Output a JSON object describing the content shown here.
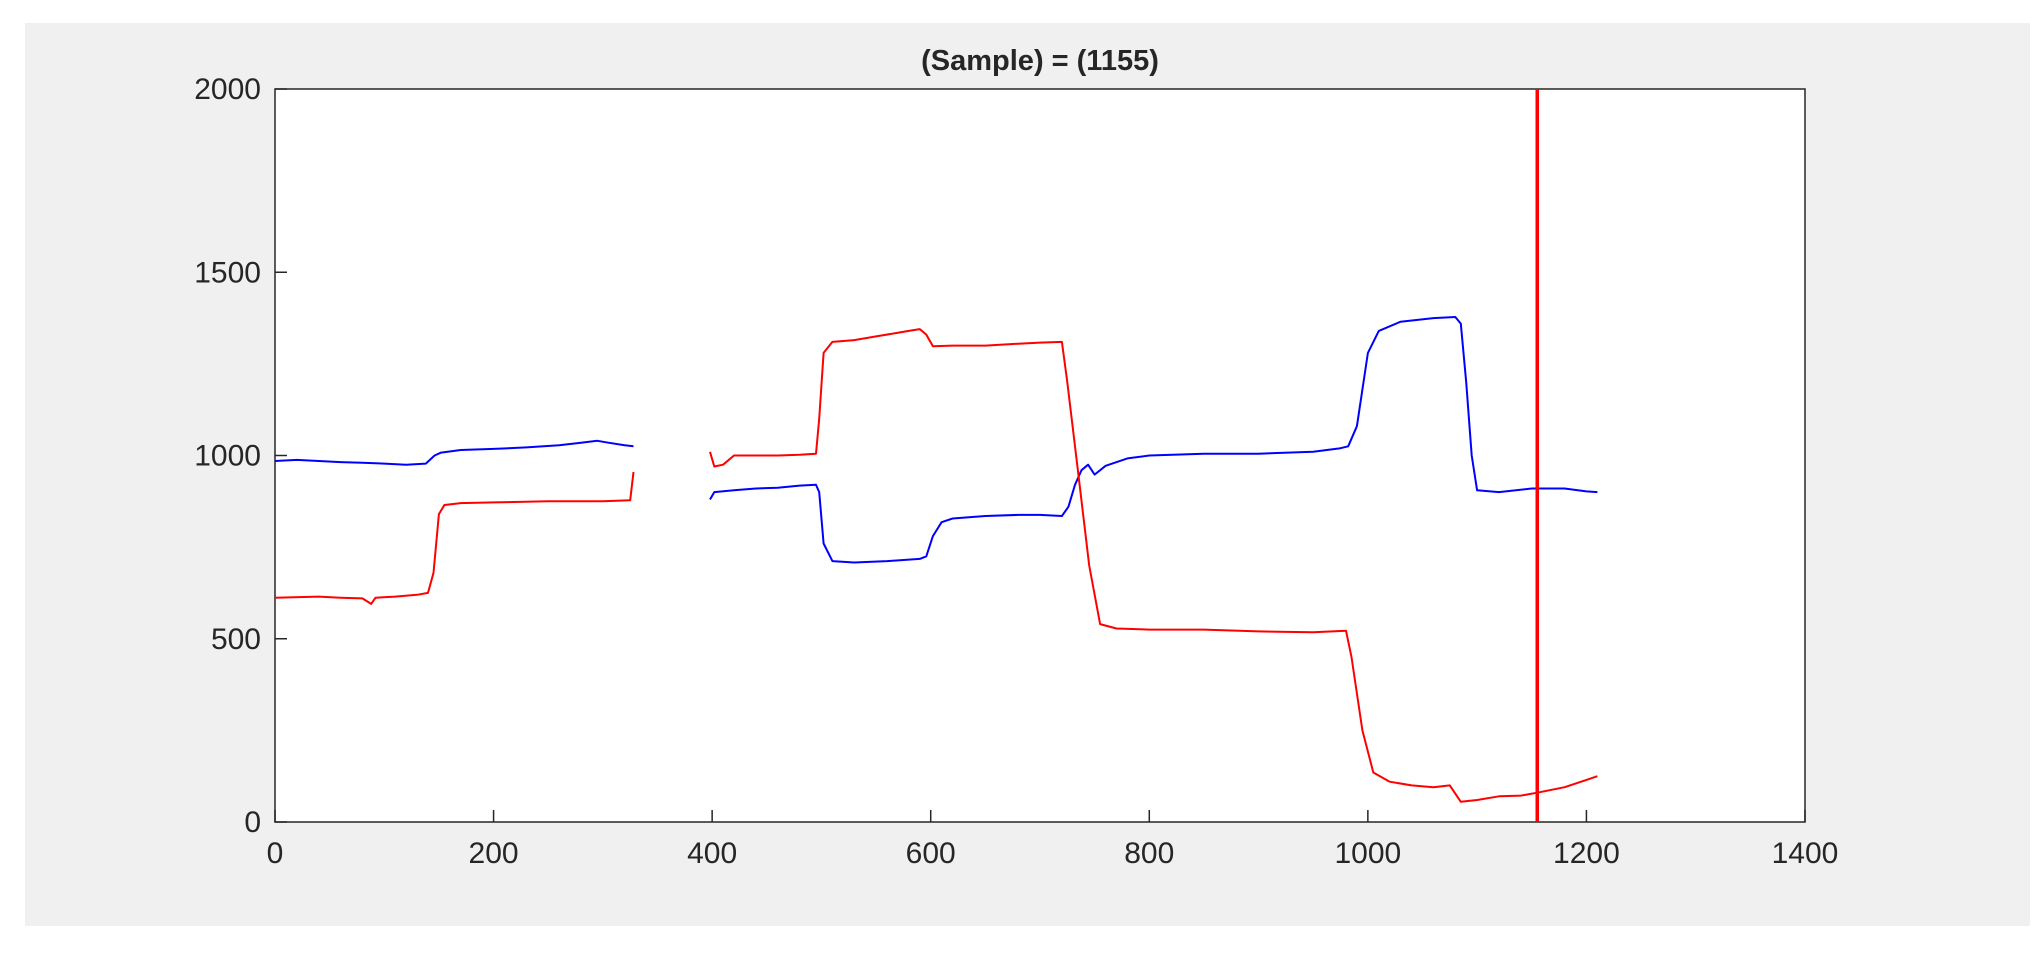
{
  "chart_data": {
    "type": "line",
    "title": "(Sample) = (1155)",
    "xlabel": "",
    "ylabel": "",
    "xlim": [
      0,
      1400
    ],
    "ylim": [
      0,
      2000
    ],
    "xticks": [
      0,
      200,
      400,
      600,
      800,
      1000,
      1200,
      1400
    ],
    "yticks": [
      0,
      500,
      1000,
      1500,
      2000
    ],
    "xtick_labels": [
      "0",
      "200",
      "400",
      "600",
      "800",
      "1000",
      "1200",
      "1400"
    ],
    "ytick_labels": [
      "0",
      "500",
      "1000",
      "1500",
      "2000"
    ],
    "grid": false,
    "cursor": {
      "x": 1155,
      "color": "#ff0000"
    },
    "series": [
      {
        "color": "#0000ff",
        "segments": [
          [
            [
              0,
              985
            ],
            [
              20,
              988
            ],
            [
              40,
              985
            ],
            [
              60,
              982
            ],
            [
              80,
              980
            ],
            [
              100,
              978
            ],
            [
              120,
              975
            ],
            [
              138,
              978
            ],
            [
              146,
              1000
            ],
            [
              152,
              1008
            ],
            [
              170,
              1015
            ],
            [
              200,
              1018
            ],
            [
              230,
              1022
            ],
            [
              260,
              1028
            ],
            [
              280,
              1035
            ],
            [
              295,
              1040
            ],
            [
              305,
              1035
            ],
            [
              320,
              1028
            ],
            [
              328,
              1025
            ]
          ],
          [
            [
              398,
              880
            ],
            [
              402,
              900
            ],
            [
              420,
              905
            ],
            [
              440,
              910
            ],
            [
              460,
              912
            ],
            [
              480,
              918
            ],
            [
              495,
              920
            ],
            [
              498,
              900
            ],
            [
              502,
              760
            ],
            [
              510,
              712
            ],
            [
              530,
              708
            ],
            [
              560,
              712
            ],
            [
              590,
              718
            ],
            [
              596,
              725
            ],
            [
              602,
              780
            ],
            [
              610,
              818
            ],
            [
              620,
              828
            ],
            [
              650,
              835
            ],
            [
              680,
              838
            ],
            [
              700,
              838
            ],
            [
              720,
              835
            ],
            [
              726,
              860
            ],
            [
              732,
              920
            ],
            [
              738,
              960
            ],
            [
              744,
              975
            ],
            [
              750,
              948
            ],
            [
              760,
              972
            ],
            [
              780,
              992
            ],
            [
              800,
              1000
            ],
            [
              850,
              1005
            ],
            [
              900,
              1005
            ],
            [
              950,
              1010
            ],
            [
              975,
              1020
            ],
            [
              982,
              1025
            ],
            [
              990,
              1080
            ],
            [
              1000,
              1280
            ],
            [
              1010,
              1340
            ],
            [
              1030,
              1365
            ],
            [
              1060,
              1375
            ],
            [
              1080,
              1378
            ],
            [
              1085,
              1360
            ],
            [
              1090,
              1200
            ],
            [
              1095,
              1000
            ],
            [
              1100,
              905
            ],
            [
              1120,
              900
            ],
            [
              1150,
              910
            ],
            [
              1180,
              910
            ],
            [
              1200,
              902
            ],
            [
              1210,
              900
            ]
          ]
        ]
      },
      {
        "color": "#ff0000",
        "segments": [
          [
            [
              0,
              612
            ],
            [
              40,
              615
            ],
            [
              60,
              612
            ],
            [
              80,
              610
            ],
            [
              88,
              595
            ],
            [
              92,
              612
            ],
            [
              110,
              615
            ],
            [
              130,
              620
            ],
            [
              140,
              625
            ],
            [
              145,
              680
            ],
            [
              150,
              840
            ],
            [
              155,
              865
            ],
            [
              170,
              870
            ],
            [
              200,
              872
            ],
            [
              250,
              875
            ],
            [
              300,
              875
            ],
            [
              325,
              878
            ],
            [
              328,
              955
            ]
          ],
          [
            [
              398,
              1010
            ],
            [
              402,
              970
            ],
            [
              410,
              975
            ],
            [
              420,
              1000
            ],
            [
              440,
              1000
            ],
            [
              460,
              1000
            ],
            [
              480,
              1002
            ],
            [
              495,
              1005
            ],
            [
              498,
              1100
            ],
            [
              502,
              1280
            ],
            [
              510,
              1310
            ],
            [
              530,
              1315
            ],
            [
              550,
              1325
            ],
            [
              580,
              1340
            ],
            [
              590,
              1345
            ],
            [
              596,
              1330
            ],
            [
              602,
              1298
            ],
            [
              620,
              1300
            ],
            [
              650,
              1300
            ],
            [
              680,
              1305
            ],
            [
              700,
              1308
            ],
            [
              720,
              1310
            ],
            [
              725,
              1200
            ],
            [
              735,
              950
            ],
            [
              745,
              700
            ],
            [
              755,
              540
            ],
            [
              770,
              528
            ],
            [
              800,
              525
            ],
            [
              850,
              525
            ],
            [
              900,
              520
            ],
            [
              950,
              518
            ],
            [
              980,
              522
            ],
            [
              985,
              450
            ],
            [
              995,
              250
            ],
            [
              1005,
              135
            ],
            [
              1020,
              110
            ],
            [
              1040,
              100
            ],
            [
              1060,
              95
            ],
            [
              1075,
              100
            ],
            [
              1085,
              55
            ],
            [
              1100,
              60
            ],
            [
              1120,
              70
            ],
            [
              1140,
              72
            ],
            [
              1155,
              80
            ],
            [
              1180,
              95
            ],
            [
              1200,
              115
            ],
            [
              1210,
              125
            ]
          ]
        ]
      }
    ]
  }
}
